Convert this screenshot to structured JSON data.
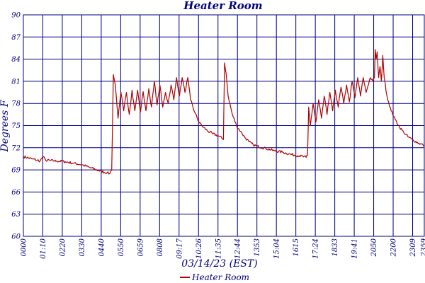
{
  "chart_data": {
    "type": "line",
    "title": "Heater Room",
    "xlabel": "03/14/23 (EST)",
    "ylabel": "Degrees F",
    "ylim": [
      60,
      90
    ],
    "yticks": [
      "90",
      "87",
      "84",
      "81",
      "78",
      "75",
      "72",
      "69",
      "66",
      "63",
      "60"
    ],
    "xticks": [
      "0000",
      "01:10",
      "0220",
      "0330",
      "0440",
      "0550",
      "0659",
      "0808",
      "09:17",
      "10:26",
      "11:35",
      "12:44",
      "1353",
      "15:04",
      "1615",
      "17:24",
      "1833",
      "19:41",
      "2050",
      "2200",
      "2309",
      "2359"
    ],
    "x_unit": "HHMM",
    "grid": true,
    "legend_position": "bottom-center",
    "colors": {
      "series": "#b00000",
      "grid": "#000080",
      "text": "#000080"
    },
    "series": [
      {
        "name": "Heater Room",
        "points": [
          [
            "00:00",
            70.8
          ],
          [
            "00:30",
            70.5
          ],
          [
            "01:00",
            70.2
          ],
          [
            "01:10",
            70.8
          ],
          [
            "01:20",
            70.3
          ],
          [
            "02:00",
            70.2
          ],
          [
            "02:30",
            70.1
          ],
          [
            "03:00",
            69.9
          ],
          [
            "03:30",
            69.7
          ],
          [
            "04:00",
            69.3
          ],
          [
            "04:30",
            68.9
          ],
          [
            "05:00",
            68.6
          ],
          [
            "05:10",
            68.5
          ],
          [
            "05:17",
            69.0
          ],
          [
            "05:23",
            81.9
          ],
          [
            "05:30",
            80.5
          ],
          [
            "05:40",
            76.0
          ],
          [
            "05:50",
            79.5
          ],
          [
            "06:00",
            77.0
          ],
          [
            "06:10",
            79.5
          ],
          [
            "06:20",
            76.5
          ],
          [
            "06:30",
            79.8
          ],
          [
            "06:40",
            77.0
          ],
          [
            "06:50",
            79.8
          ],
          [
            "07:00",
            76.8
          ],
          [
            "07:10",
            79.6
          ],
          [
            "07:20",
            77.0
          ],
          [
            "07:30",
            80.0
          ],
          [
            "07:40",
            77.5
          ],
          [
            "07:50",
            81.0
          ],
          [
            "08:00",
            77.8
          ],
          [
            "08:10",
            80.5
          ],
          [
            "08:20",
            77.5
          ],
          [
            "08:30",
            79.5
          ],
          [
            "08:40",
            78.0
          ],
          [
            "08:50",
            80.5
          ],
          [
            "09:00",
            78.5
          ],
          [
            "09:10",
            81.5
          ],
          [
            "09:20",
            79.0
          ],
          [
            "09:30",
            81.5
          ],
          [
            "09:40",
            79.5
          ],
          [
            "09:50",
            81.5
          ],
          [
            "10:00",
            78.5
          ],
          [
            "10:15",
            76.8
          ],
          [
            "10:30",
            75.5
          ],
          [
            "10:45",
            74.8
          ],
          [
            "11:00",
            74.3
          ],
          [
            "11:20",
            73.9
          ],
          [
            "11:40",
            73.6
          ],
          [
            "11:52",
            73.3
          ],
          [
            "11:58",
            73.1
          ],
          [
            "12:02",
            83.5
          ],
          [
            "12:08",
            82.0
          ],
          [
            "12:15",
            79.0
          ],
          [
            "12:30",
            76.5
          ],
          [
            "12:45",
            75.0
          ],
          [
            "13:00",
            74.2
          ],
          [
            "13:15",
            73.4
          ],
          [
            "13:30",
            72.8
          ],
          [
            "13:45",
            72.4
          ],
          [
            "14:00",
            72.2
          ],
          [
            "14:30",
            71.9
          ],
          [
            "15:00",
            71.6
          ],
          [
            "15:30",
            71.4
          ],
          [
            "16:00",
            71.1
          ],
          [
            "16:30",
            70.9
          ],
          [
            "16:55",
            70.7
          ],
          [
            "17:00",
            71.0
          ],
          [
            "17:04",
            77.5
          ],
          [
            "17:10",
            75.0
          ],
          [
            "17:20",
            78.0
          ],
          [
            "17:30",
            75.5
          ],
          [
            "17:40",
            78.5
          ],
          [
            "17:50",
            76.0
          ],
          [
            "18:00",
            79.0
          ],
          [
            "18:10",
            76.5
          ],
          [
            "18:20",
            79.5
          ],
          [
            "18:30",
            77.0
          ],
          [
            "18:40",
            79.8
          ],
          [
            "18:50",
            77.5
          ],
          [
            "19:00",
            80.2
          ],
          [
            "19:10",
            78.0
          ],
          [
            "19:20",
            80.5
          ],
          [
            "19:30",
            78.2
          ],
          [
            "19:40",
            81.0
          ],
          [
            "19:50",
            78.8
          ],
          [
            "20:00",
            81.5
          ],
          [
            "20:10",
            79.0
          ],
          [
            "20:20",
            81.5
          ],
          [
            "20:30",
            79.5
          ],
          [
            "20:45",
            81.5
          ],
          [
            "20:55",
            81.0
          ],
          [
            "21:00",
            81.5
          ],
          [
            "21:03",
            85.3
          ],
          [
            "21:06",
            84.0
          ],
          [
            "21:10",
            85.0
          ],
          [
            "21:15",
            81.5
          ],
          [
            "21:20",
            83.0
          ],
          [
            "21:25",
            81.0
          ],
          [
            "21:30",
            84.5
          ],
          [
            "21:35",
            81.5
          ],
          [
            "21:45",
            79.0
          ],
          [
            "22:00",
            77.0
          ],
          [
            "22:15",
            75.8
          ],
          [
            "22:30",
            74.8
          ],
          [
            "22:45",
            74.1
          ],
          [
            "23:00",
            73.5
          ],
          [
            "23:20",
            73.0
          ],
          [
            "23:40",
            72.6
          ],
          [
            "23:59",
            72.3
          ]
        ]
      }
    ]
  }
}
